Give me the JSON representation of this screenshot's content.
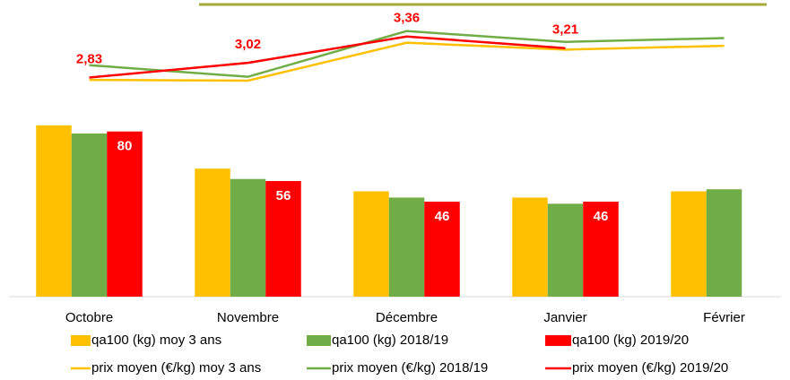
{
  "chart_data": {
    "type": "bar",
    "categories": [
      "Octobre",
      "Novembre",
      "Décembre",
      "Janvier",
      "Février"
    ],
    "ylim": [
      0,
      135
    ],
    "y2lim": [
      0,
      3.6
    ],
    "series": [
      {
        "name": "qa100 (kg) moy 3 ans",
        "type": "bar",
        "color": "#ffc000",
        "values": [
          83,
          62,
          51,
          48,
          51
        ]
      },
      {
        "name": "qa100 (kg) 2018/19",
        "type": "bar",
        "color": "#70ad47",
        "values": [
          79,
          57,
          48,
          45,
          52
        ]
      },
      {
        "name": "qa100 (kg) 2019/20",
        "type": "bar",
        "color": "#ff0000",
        "values": [
          80,
          56,
          46,
          46,
          null
        ],
        "labels": true
      },
      {
        "name": "prix moyen (€/kg) moy 3 ans",
        "type": "line",
        "axis": "y2",
        "color": "#ffc000",
        "values": [
          2.8,
          2.79,
          3.28,
          3.19,
          3.24
        ]
      },
      {
        "name": "prix moyen (€/kg) 2018/19",
        "type": "line",
        "axis": "y2",
        "color": "#70ad47",
        "values": [
          2.99,
          2.84,
          3.43,
          3.29,
          3.34
        ]
      },
      {
        "name": "prix moyen (€/kg) 2019/20",
        "type": "line",
        "axis": "y2",
        "color": "#ff0000",
        "values": [
          2.83,
          3.02,
          3.36,
          3.21,
          null
        ],
        "value_labels": [
          "2,83",
          "3,02",
          "3,36",
          "3,21",
          null
        ]
      }
    ]
  }
}
